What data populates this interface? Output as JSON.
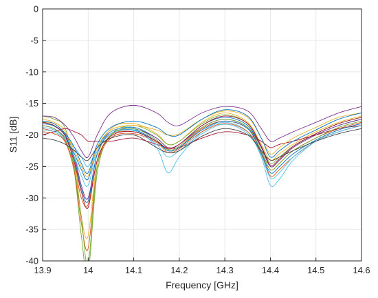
{
  "chart_data": {
    "type": "line",
    "title": "",
    "xlabel": "Frequency [GHz]",
    "ylabel": "S11 [dB]",
    "xlim": [
      13.9,
      14.6
    ],
    "ylim": [
      -40,
      0
    ],
    "xticks": [
      13.9,
      14.0,
      14.1,
      14.2,
      14.3,
      14.4,
      14.5,
      14.6
    ],
    "xtick_labels": [
      "13.9",
      "14",
      "14.1",
      "14.2",
      "14.3",
      "14.4",
      "14.5",
      "14.6"
    ],
    "yticks": [
      0,
      -5,
      -10,
      -15,
      -20,
      -25,
      -30,
      -35,
      -40
    ],
    "ytick_labels": [
      "0",
      "-5",
      "-10",
      "-15",
      "-20",
      "-25",
      "-30",
      "-35",
      "-40"
    ],
    "grid": true,
    "legend": false,
    "x": [
      13.9,
      13.925,
      13.95,
      13.97,
      13.985,
      14.0,
      14.02,
      14.05,
      14.1,
      14.15,
      14.175,
      14.2,
      14.25,
      14.3,
      14.35,
      14.38,
      14.4,
      14.42,
      14.45,
      14.5,
      14.55,
      14.6
    ],
    "series": [
      {
        "color": "#0072BD",
        "values": [
          -18.0,
          -18.5,
          -20.0,
          -23.0,
          -25.5,
          -27.0,
          -22.0,
          -19.5,
          -18.8,
          -20.5,
          -22.0,
          -21.5,
          -18.5,
          -17.2,
          -18.5,
          -22.0,
          -25.0,
          -24.0,
          -22.0,
          -20.0,
          -18.5,
          -17.5
        ]
      },
      {
        "color": "#D95319",
        "values": [
          -19.0,
          -19.5,
          -21.0,
          -25.0,
          -30.0,
          -31.0,
          -24.0,
          -20.0,
          -19.5,
          -21.0,
          -22.5,
          -22.0,
          -19.0,
          -17.8,
          -19.0,
          -22.5,
          -25.5,
          -24.5,
          -22.5,
          -20.5,
          -19.0,
          -18.0
        ]
      },
      {
        "color": "#EDB120",
        "values": [
          -17.5,
          -18.0,
          -19.5,
          -24.0,
          -33.0,
          -36.0,
          -24.0,
          -19.0,
          -18.2,
          -19.8,
          -21.5,
          -21.0,
          -18.0,
          -16.5,
          -18.0,
          -21.5,
          -24.0,
          -23.0,
          -21.5,
          -19.5,
          -18.0,
          -17.0
        ]
      },
      {
        "color": "#7E2F8E",
        "values": [
          -18.5,
          -19.0,
          -20.5,
          -23.5,
          -28.0,
          -30.0,
          -23.0,
          -19.5,
          -19.0,
          -20.5,
          -22.0,
          -21.5,
          -18.8,
          -17.5,
          -18.8,
          -22.0,
          -25.0,
          -24.0,
          -22.0,
          -20.0,
          -18.5,
          -17.5
        ]
      },
      {
        "color": "#77AC30",
        "values": [
          -17.0,
          -17.5,
          -19.0,
          -26.0,
          -36.0,
          -42.0,
          -26.0,
          -20.0,
          -18.5,
          -20.0,
          -21.5,
          -21.0,
          -18.2,
          -16.8,
          -18.2,
          -21.8,
          -24.5,
          -23.5,
          -21.8,
          -19.8,
          -18.2,
          -17.2
        ]
      },
      {
        "color": "#4DBEEE",
        "values": [
          -18.8,
          -19.2,
          -20.5,
          -22.0,
          -23.5,
          -25.0,
          -22.0,
          -19.5,
          -19.0,
          -22.0,
          -26.0,
          -23.5,
          -19.5,
          -18.0,
          -19.5,
          -23.5,
          -28.0,
          -27.0,
          -24.0,
          -21.0,
          -19.5,
          -18.5
        ]
      },
      {
        "color": "#A2142F",
        "values": [
          -20.0,
          -19.5,
          -19.0,
          -19.5,
          -20.0,
          -21.0,
          -21.0,
          -21.0,
          -20.5,
          -21.5,
          -22.0,
          -22.0,
          -20.5,
          -19.5,
          -20.0,
          -21.0,
          -22.0,
          -21.5,
          -21.0,
          -20.0,
          -19.0,
          -18.5
        ]
      },
      {
        "color": "#0072BD",
        "values": [
          -18.2,
          -18.6,
          -20.2,
          -24.0,
          -28.5,
          -30.5,
          -23.0,
          -19.8,
          -19.2,
          -21.0,
          -22.5,
          -22.0,
          -19.2,
          -17.8,
          -19.0,
          -22.8,
          -26.0,
          -25.0,
          -23.0,
          -20.8,
          -19.2,
          -18.2
        ]
      },
      {
        "color": "#D95319",
        "values": [
          -19.5,
          -19.8,
          -21.2,
          -26.0,
          -34.0,
          -38.0,
          -25.0,
          -20.5,
          -19.8,
          -21.2,
          -22.8,
          -22.2,
          -19.5,
          -18.2,
          -19.5,
          -23.0,
          -26.5,
          -25.5,
          -23.5,
          -21.0,
          -19.5,
          -18.5
        ]
      },
      {
        "color": "#EDB120",
        "values": [
          -18.0,
          -18.2,
          -19.8,
          -22.5,
          -25.0,
          -26.5,
          -22.0,
          -19.2,
          -18.5,
          -19.2,
          -20.0,
          -19.8,
          -17.5,
          -16.2,
          -17.2,
          -20.5,
          -23.0,
          -22.0,
          -20.5,
          -18.8,
          -17.2,
          -16.5
        ]
      },
      {
        "color": "#7E2F8E",
        "values": [
          -17.0,
          -17.2,
          -18.5,
          -20.5,
          -22.5,
          -23.5,
          -20.0,
          -16.5,
          -15.3,
          -16.5,
          -18.0,
          -18.5,
          -16.5,
          -15.5,
          -16.2,
          -19.0,
          -21.0,
          -20.5,
          -19.5,
          -18.0,
          -16.5,
          -15.5
        ]
      },
      {
        "color": "#77AC30",
        "values": [
          -18.5,
          -19.0,
          -20.8,
          -25.5,
          -33.0,
          -40.5,
          -25.0,
          -20.0,
          -19.0,
          -20.8,
          -22.3,
          -21.8,
          -18.8,
          -17.5,
          -18.8,
          -22.5,
          -25.5,
          -24.5,
          -22.5,
          -20.5,
          -18.8,
          -17.8
        ]
      },
      {
        "color": "#4DBEEE",
        "values": [
          -19.2,
          -19.5,
          -20.8,
          -23.5,
          -26.5,
          -28.0,
          -22.5,
          -19.8,
          -19.3,
          -21.5,
          -23.5,
          -22.5,
          -19.8,
          -18.3,
          -19.8,
          -23.2,
          -26.8,
          -26.0,
          -23.5,
          -21.0,
          -19.5,
          -18.5
        ]
      },
      {
        "color": "#A2142F",
        "values": [
          -18.0,
          -18.5,
          -20.2,
          -24.5,
          -29.0,
          -31.5,
          -24.0,
          -20.2,
          -19.5,
          -21.0,
          -22.2,
          -21.5,
          -18.5,
          -17.0,
          -18.2,
          -21.8,
          -24.8,
          -23.8,
          -21.8,
          -19.8,
          -18.2,
          -17.2
        ]
      },
      {
        "color": "#404040",
        "values": [
          -20.5,
          -20.8,
          -21.5,
          -22.5,
          -23.5,
          -24.0,
          -22.0,
          -20.5,
          -20.0,
          -22.0,
          -22.8,
          -22.5,
          -20.2,
          -19.0,
          -20.0,
          -22.5,
          -24.0,
          -23.5,
          -22.5,
          -21.0,
          -19.8,
          -19.0
        ]
      },
      {
        "color": "#0072BD",
        "values": [
          -17.8,
          -18.2,
          -19.8,
          -22.0,
          -24.5,
          -26.0,
          -21.5,
          -18.8,
          -17.8,
          -18.8,
          -20.0,
          -20.0,
          -17.5,
          -16.0,
          -17.0,
          -20.5,
          -23.5,
          -22.5,
          -21.0,
          -19.2,
          -17.5,
          -16.5
        ]
      }
    ]
  }
}
